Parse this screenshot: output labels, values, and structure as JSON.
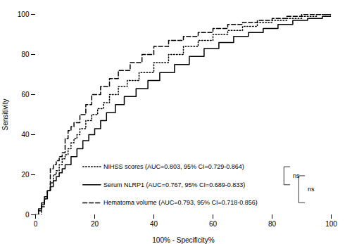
{
  "chart_data": {
    "type": "step",
    "xlabel": "100% - Specificity%",
    "ylabel": "Sensitivity",
    "xlim": [
      0,
      100
    ],
    "ylim": [
      0,
      100
    ],
    "xticks": [
      0,
      20,
      40,
      60,
      80,
      100
    ],
    "yticks": [
      0,
      20,
      40,
      60,
      80,
      100
    ],
    "legend": "lower right",
    "series": [
      {
        "name": "NIHSS scores (AUC=0.803, 95% CI=0.729-0.864)",
        "color": "#000000",
        "line_style": "dotted",
        "x": [
          0,
          2,
          3,
          4,
          5,
          6,
          7,
          8,
          9,
          10,
          11,
          12,
          13,
          14,
          15,
          17,
          19,
          21,
          23,
          25,
          28,
          31,
          35,
          40,
          45,
          50,
          55,
          60,
          65,
          70,
          75,
          80,
          85,
          90,
          95,
          100
        ],
        "values": [
          0,
          5,
          8,
          12,
          16,
          20,
          22,
          25,
          28,
          30,
          33,
          36,
          38,
          40,
          43,
          47,
          50,
          53,
          56,
          60,
          64,
          67,
          71,
          76,
          80,
          84,
          87,
          90,
          92,
          94,
          96,
          97,
          98,
          99,
          100,
          100
        ]
      },
      {
        "name": "Serum NLRP1 (AUC=0.767, 95% CI=0.689-0.833)",
        "color": "#000000",
        "line_style": "solid",
        "x": [
          0,
          1,
          2,
          3,
          4,
          5,
          6,
          7,
          8,
          9,
          10,
          12,
          14,
          16,
          18,
          20,
          22,
          24,
          27,
          30,
          34,
          38,
          42,
          47,
          52,
          57,
          62,
          67,
          72,
          77,
          82,
          87,
          92,
          97,
          100
        ],
        "values": [
          0,
          3,
          6,
          9,
          12,
          14,
          17,
          19,
          21,
          23,
          25,
          29,
          33,
          37,
          40,
          43,
          47,
          51,
          55,
          59,
          63,
          67,
          71,
          75,
          79,
          83,
          86,
          89,
          91,
          93,
          95,
          97,
          98,
          99,
          100
        ]
      },
      {
        "name": "Hematoma volume (AUC=0.793, 95% CI=0.718-0.856)",
        "color": "#000000",
        "line_style": "dashed",
        "x": [
          0,
          1,
          2,
          3,
          4,
          5,
          6,
          7,
          8,
          9,
          10,
          11,
          12,
          13,
          15,
          17,
          19,
          22,
          25,
          28,
          32,
          36,
          40,
          45,
          50,
          55,
          60,
          65,
          70,
          75,
          80,
          85,
          90,
          95,
          100
        ],
        "values": [
          0,
          2,
          4,
          8,
          12,
          23,
          25,
          27,
          29,
          31,
          38,
          42,
          44,
          46,
          50,
          55,
          60,
          64,
          68,
          72,
          76,
          80,
          84,
          87,
          89,
          91,
          93,
          95,
          96,
          97,
          98,
          99,
          100,
          100,
          100
        ]
      }
    ],
    "annotations": [
      "ns",
      "ns"
    ]
  }
}
